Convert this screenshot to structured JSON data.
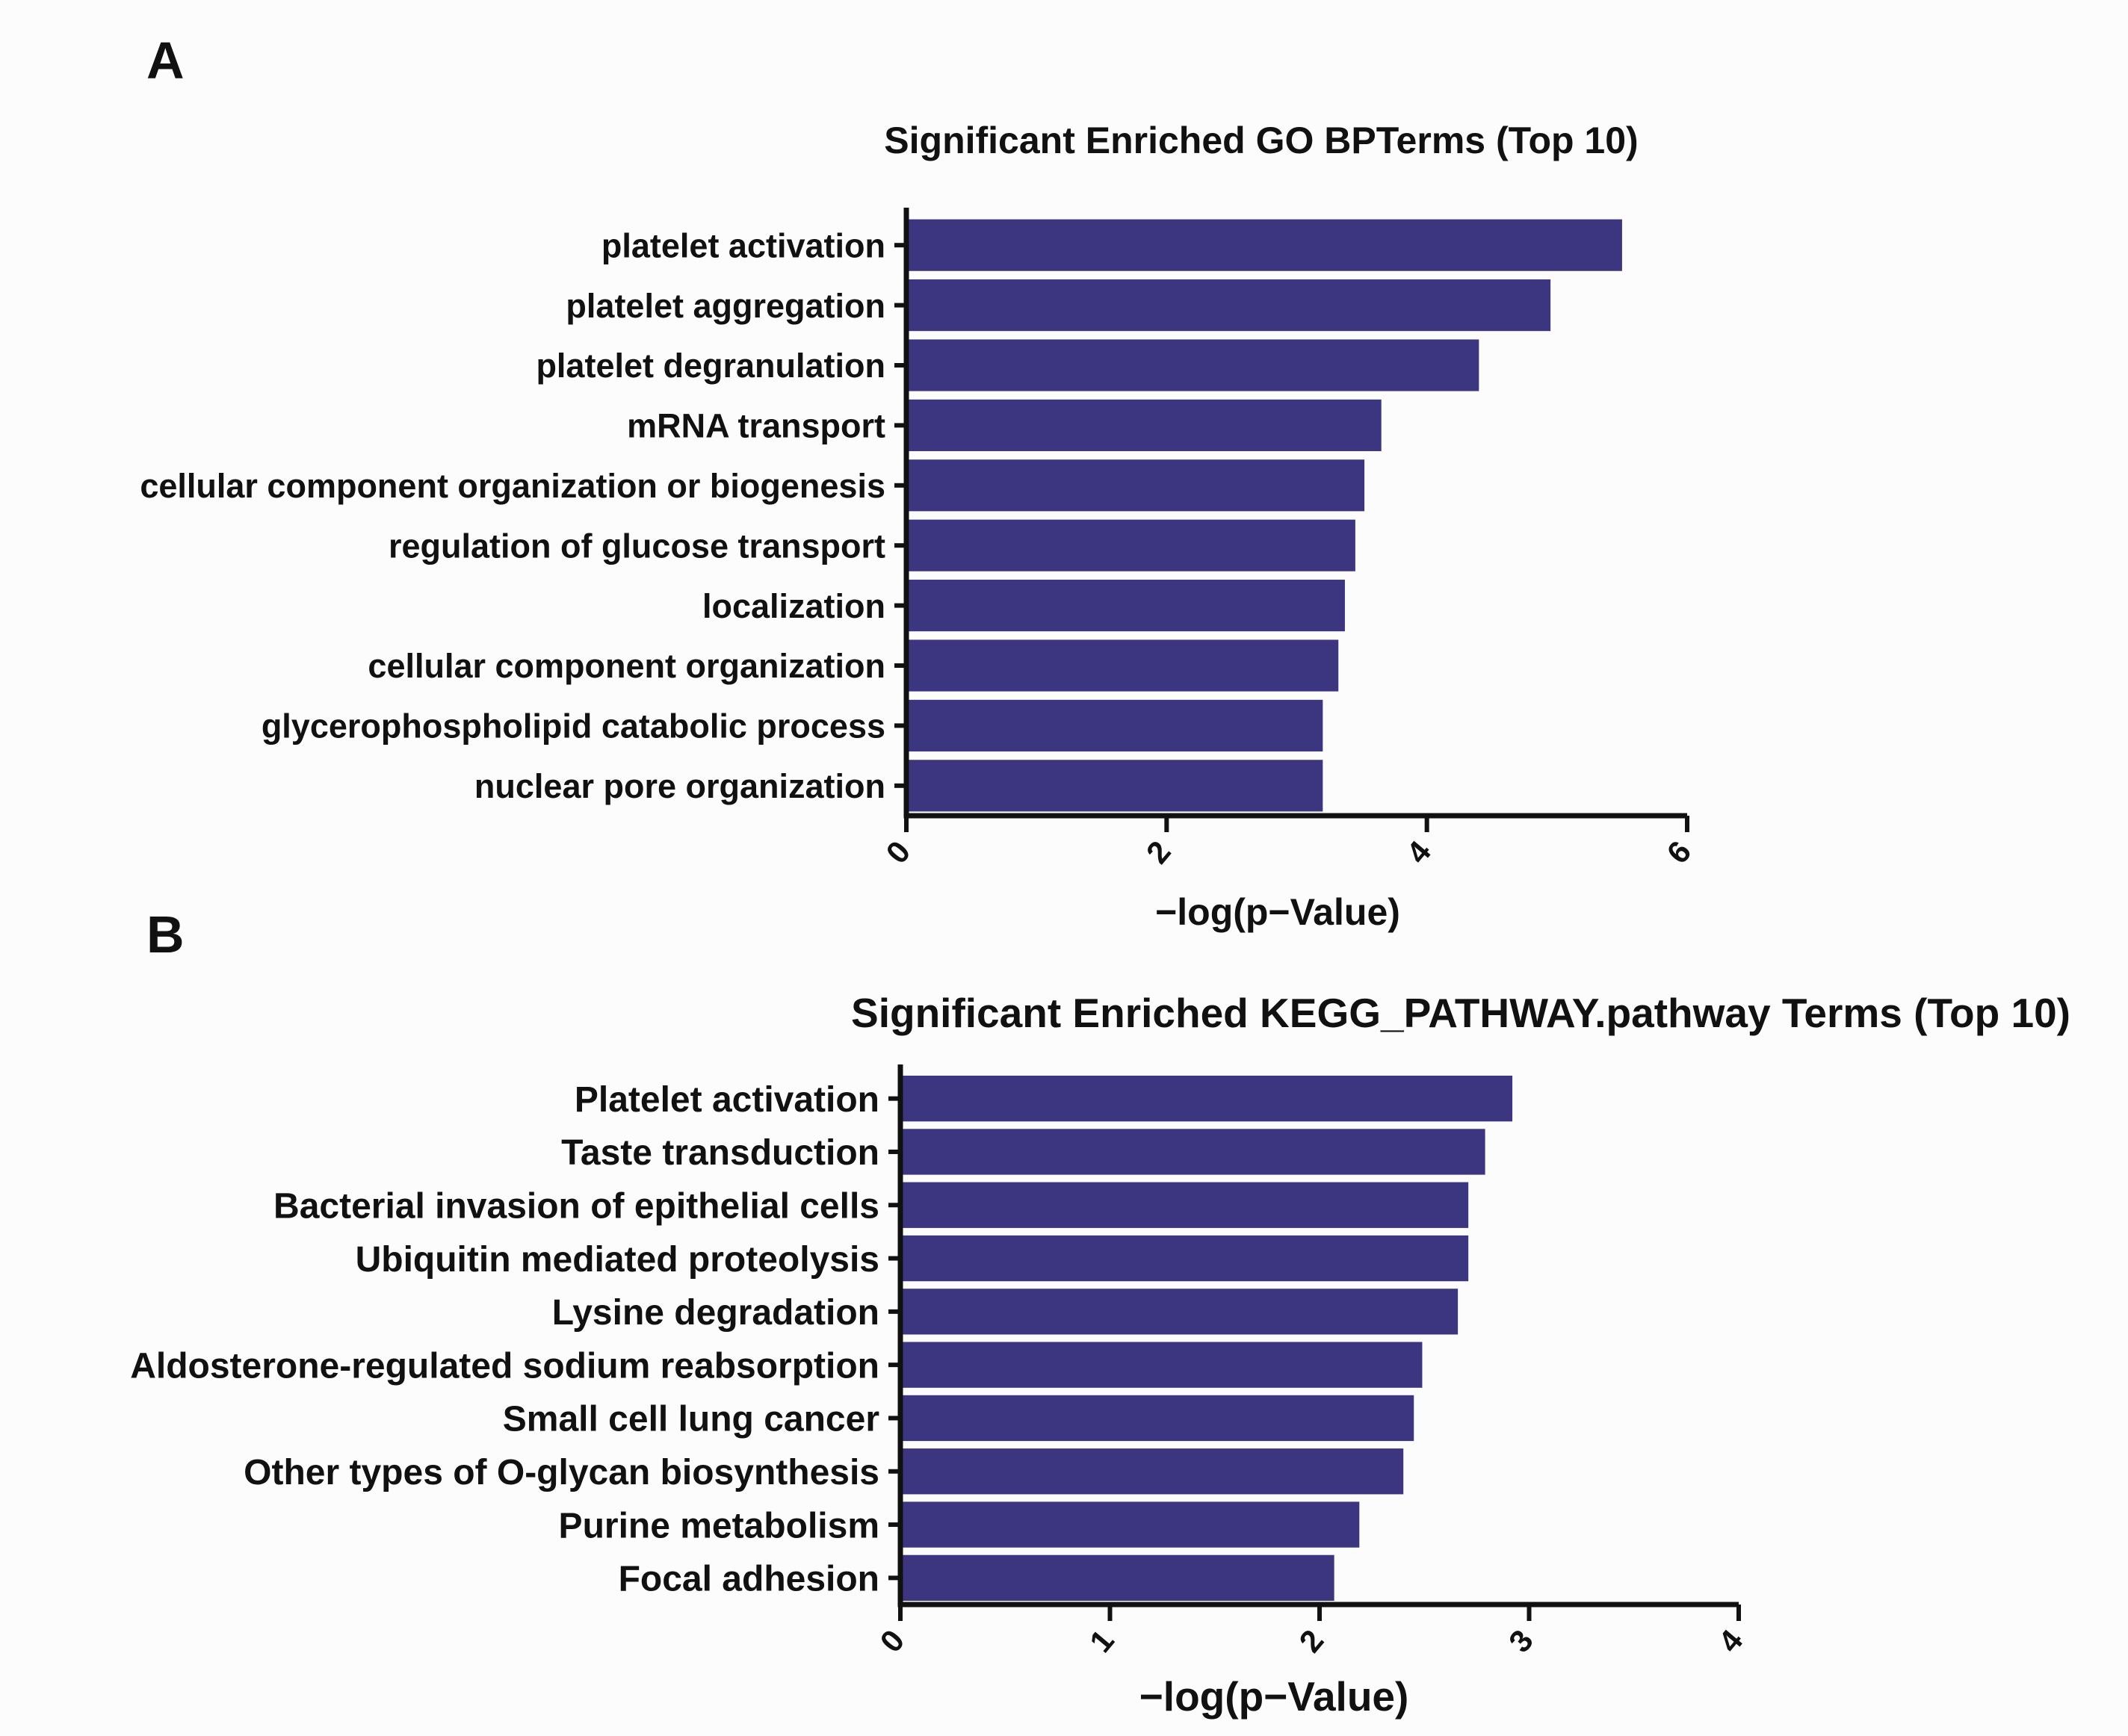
{
  "panels": {
    "a": {
      "letter": "A"
    },
    "b": {
      "letter": "B"
    }
  },
  "colors": {
    "bar": "#3c3681"
  },
  "chart_data": [
    {
      "type": "bar",
      "orientation": "horizontal",
      "title": "Significant Enriched GO BPTerms (Top 10)",
      "xlabel": "−log(p−Value)",
      "ylabel": "",
      "xlim": [
        0,
        6
      ],
      "xticks": [
        "0",
        "2",
        "4",
        "6"
      ],
      "categories": [
        "platelet activation",
        "platelet aggregation",
        "platelet degranulation",
        "mRNA transport",
        "cellular component organization or biogenesis",
        "regulation of glucose transport",
        "localization",
        "cellular component organization",
        "glycerophospholipid catabolic process",
        "nuclear pore organization"
      ],
      "values": [
        5.5,
        4.95,
        4.4,
        3.65,
        3.52,
        3.45,
        3.37,
        3.32,
        3.2,
        3.2
      ]
    },
    {
      "type": "bar",
      "orientation": "horizontal",
      "title": "Significant Enriched KEGG_PATHWAY.pathway Terms (Top 10)",
      "xlabel": "−log(p−Value)",
      "ylabel": "",
      "xlim": [
        0,
        4
      ],
      "xticks": [
        "0",
        "1",
        "2",
        "3",
        "4"
      ],
      "categories": [
        "Platelet activation",
        "Taste transduction",
        "Bacterial invasion of epithelial cells",
        "Ubiquitin mediated proteolysis",
        "Lysine degradation",
        "Aldosterone-regulated sodium reabsorption",
        "Small cell lung cancer",
        "Other types of O-glycan biosynthesis",
        "Purine metabolism",
        "Focal adhesion"
      ],
      "values": [
        2.92,
        2.79,
        2.71,
        2.71,
        2.66,
        2.49,
        2.45,
        2.4,
        2.19,
        2.07
      ]
    }
  ]
}
